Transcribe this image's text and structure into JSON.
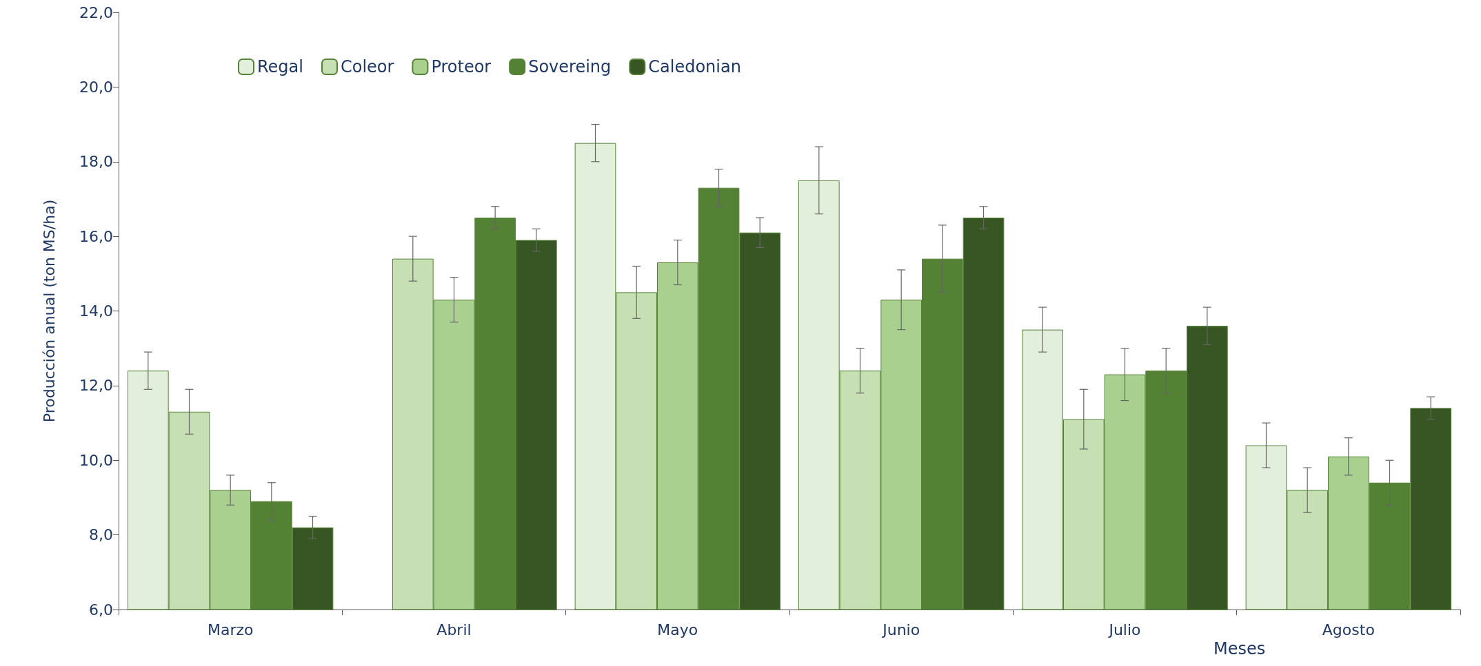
{
  "chart_data": {
    "type": "bar",
    "ylabel": "Producción anual (ton MS/ha)",
    "xlabel": "Meses",
    "categories": [
      "Marzo",
      "Abril",
      "Mayo",
      "Junio",
      "Julio",
      "Agosto"
    ],
    "series": [
      {
        "name": "Regal",
        "color": "#e2efda",
        "values": [
          12.4,
          null,
          18.5,
          17.5,
          13.5,
          10.4
        ],
        "errors": [
          0.5,
          null,
          0.5,
          0.9,
          0.6,
          0.6
        ]
      },
      {
        "name": "Coleor",
        "color": "#c6e0b4",
        "values": [
          11.3,
          15.4,
          14.5,
          12.4,
          11.1,
          9.2
        ],
        "errors": [
          0.6,
          0.6,
          0.7,
          0.6,
          0.8,
          0.6
        ]
      },
      {
        "name": "Proteor",
        "color": "#a9d08e",
        "values": [
          9.2,
          14.3,
          15.3,
          14.3,
          12.3,
          10.1
        ],
        "errors": [
          0.4,
          0.6,
          0.6,
          0.8,
          0.7,
          0.5
        ]
      },
      {
        "name": "Sovereing",
        "color": "#548235",
        "values": [
          8.9,
          16.5,
          17.3,
          15.4,
          12.4,
          9.4
        ],
        "errors": [
          0.5,
          0.3,
          0.5,
          0.9,
          0.6,
          0.6
        ]
      },
      {
        "name": "Caledonian",
        "color": "#375623",
        "values": [
          8.2,
          15.9,
          16.1,
          16.5,
          13.6,
          11.4
        ],
        "errors": [
          0.3,
          0.3,
          0.4,
          0.3,
          0.5,
          0.3
        ]
      }
    ],
    "ylim": [
      6,
      22
    ],
    "yticks": [
      {
        "value": 6,
        "label": "6,0"
      },
      {
        "value": 8,
        "label": "8,0"
      },
      {
        "value": 10,
        "label": "10,0"
      },
      {
        "value": 12,
        "label": "12,0"
      },
      {
        "value": 14,
        "label": "14,0"
      },
      {
        "value": 16,
        "label": "16,0"
      },
      {
        "value": 18,
        "label": "18,0"
      },
      {
        "value": 20,
        "label": "20,0"
      },
      {
        "value": 22,
        "label": "22,0"
      }
    ],
    "grid": false,
    "legend": "top left"
  }
}
